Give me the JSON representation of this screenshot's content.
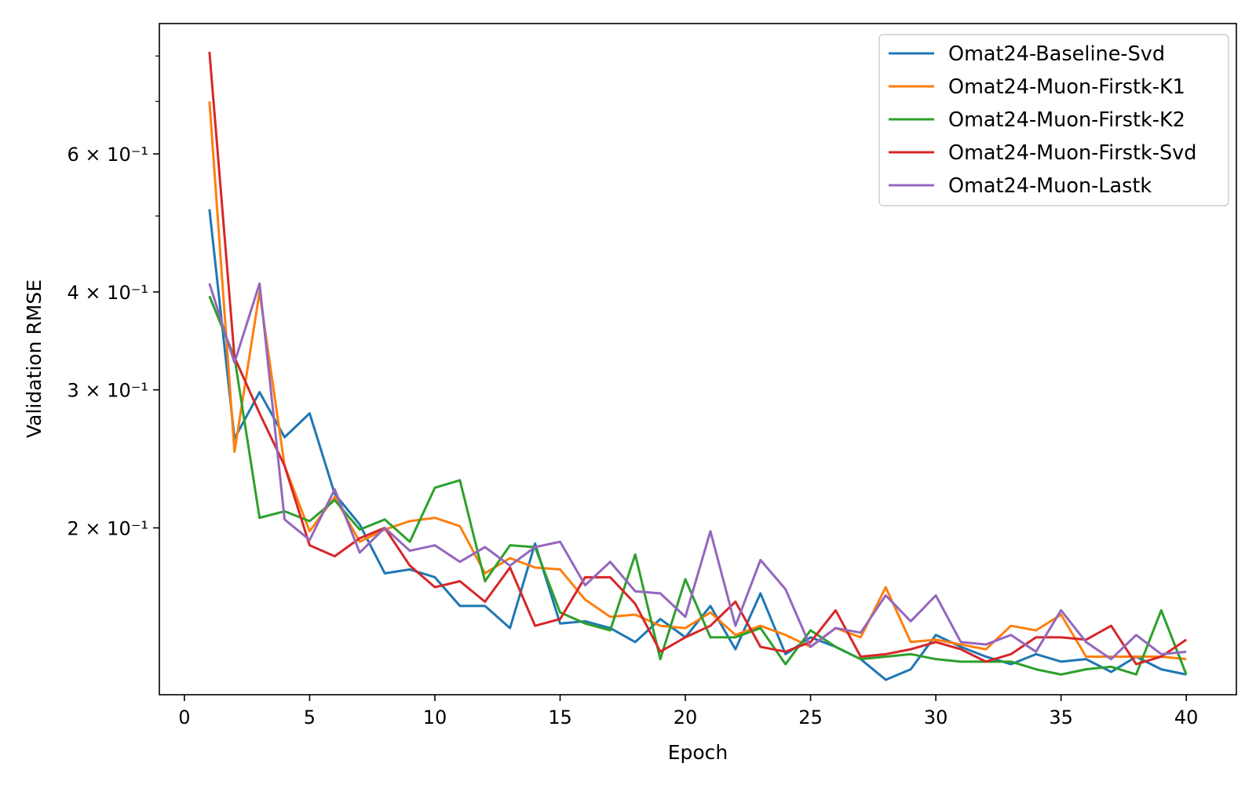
{
  "chart_data": {
    "type": "line",
    "title": "",
    "xlabel": "Epoch",
    "ylabel": "Validation RMSE",
    "y_scale": "log",
    "xlim": [
      -1,
      42
    ],
    "ylim": [
      0.1225,
      0.88
    ],
    "grid": false,
    "legend_position": "top-right",
    "x_ticks": [
      0,
      5,
      10,
      15,
      20,
      25,
      30,
      35,
      40
    ],
    "x_tick_labels": [
      "0",
      "5",
      "10",
      "15",
      "20",
      "25",
      "30",
      "35",
      "40"
    ],
    "y_major_ticks": [
      {
        "value": 0.2,
        "label": "2 × 10⁻¹"
      },
      {
        "value": 0.3,
        "label": "3 × 10⁻¹"
      },
      {
        "value": 0.4,
        "label": "4 × 10⁻¹"
      },
      {
        "value": 0.6,
        "label": "6 × 10⁻¹"
      }
    ],
    "y_minor_ticks": [
      0.5,
      0.7,
      0.8
    ],
    "x": [
      1,
      2,
      3,
      4,
      5,
      6,
      7,
      8,
      9,
      10,
      11,
      12,
      13,
      14,
      15,
      16,
      17,
      18,
      19,
      20,
      21,
      22,
      23,
      24,
      25,
      26,
      27,
      28,
      29,
      30,
      31,
      32,
      33,
      34,
      35,
      36,
      37,
      38,
      39,
      40
    ],
    "series": [
      {
        "name": "Omat24-Baseline-Svd",
        "color": "#1f77b4",
        "values": [
          0.51,
          0.26,
          0.298,
          0.261,
          0.28,
          0.221,
          0.202,
          0.175,
          0.177,
          0.173,
          0.159,
          0.159,
          0.149,
          0.191,
          0.151,
          0.152,
          0.149,
          0.143,
          0.153,
          0.145,
          0.159,
          0.14,
          0.165,
          0.138,
          0.145,
          0.141,
          0.136,
          0.128,
          0.132,
          0.146,
          0.141,
          0.137,
          0.134,
          0.138,
          0.135,
          0.136,
          0.131,
          0.137,
          0.132,
          0.13
        ]
      },
      {
        "name": "Omat24-Muon-Firstk-K1",
        "color": "#ff7f0e",
        "values": [
          0.7,
          0.25,
          0.4,
          0.24,
          0.198,
          0.219,
          0.192,
          0.199,
          0.204,
          0.206,
          0.201,
          0.175,
          0.183,
          0.178,
          0.177,
          0.162,
          0.154,
          0.155,
          0.15,
          0.149,
          0.156,
          0.146,
          0.15,
          0.146,
          0.141,
          0.149,
          0.145,
          0.168,
          0.143,
          0.144,
          0.142,
          0.14,
          0.15,
          0.148,
          0.155,
          0.137,
          0.137,
          0.137,
          0.137,
          0.136
        ]
      },
      {
        "name": "Omat24-Muon-Firstk-K2",
        "color": "#2ca02c",
        "values": [
          0.395,
          0.33,
          0.206,
          0.21,
          0.204,
          0.217,
          0.199,
          0.205,
          0.192,
          0.225,
          0.23,
          0.171,
          0.19,
          0.189,
          0.156,
          0.151,
          0.148,
          0.185,
          0.136,
          0.172,
          0.145,
          0.145,
          0.149,
          0.134,
          0.148,
          0.141,
          0.136,
          0.137,
          0.138,
          0.136,
          0.135,
          0.135,
          0.135,
          0.132,
          0.13,
          0.132,
          0.133,
          0.13,
          0.157,
          0.13
        ]
      },
      {
        "name": "Omat24-Muon-Firstk-Svd",
        "color": "#d62728",
        "values": [
          0.81,
          0.33,
          0.28,
          0.24,
          0.19,
          0.184,
          0.194,
          0.2,
          0.179,
          0.168,
          0.171,
          0.161,
          0.178,
          0.15,
          0.153,
          0.173,
          0.173,
          0.16,
          0.139,
          0.145,
          0.15,
          0.161,
          0.141,
          0.139,
          0.143,
          0.157,
          0.137,
          0.138,
          0.14,
          0.143,
          0.14,
          0.135,
          0.138,
          0.145,
          0.145,
          0.144,
          0.15,
          0.134,
          0.137,
          0.144
        ]
      },
      {
        "name": "Omat24-Muon-Lastk",
        "color": "#9467bd",
        "values": [
          0.41,
          0.325,
          0.41,
          0.205,
          0.193,
          0.224,
          0.186,
          0.2,
          0.187,
          0.19,
          0.181,
          0.189,
          0.179,
          0.189,
          0.192,
          0.169,
          0.181,
          0.166,
          0.165,
          0.154,
          0.198,
          0.15,
          0.182,
          0.167,
          0.141,
          0.149,
          0.147,
          0.164,
          0.152,
          0.164,
          0.143,
          0.142,
          0.146,
          0.139,
          0.157,
          0.143,
          0.136,
          0.146,
          0.138,
          0.139
        ]
      }
    ]
  }
}
